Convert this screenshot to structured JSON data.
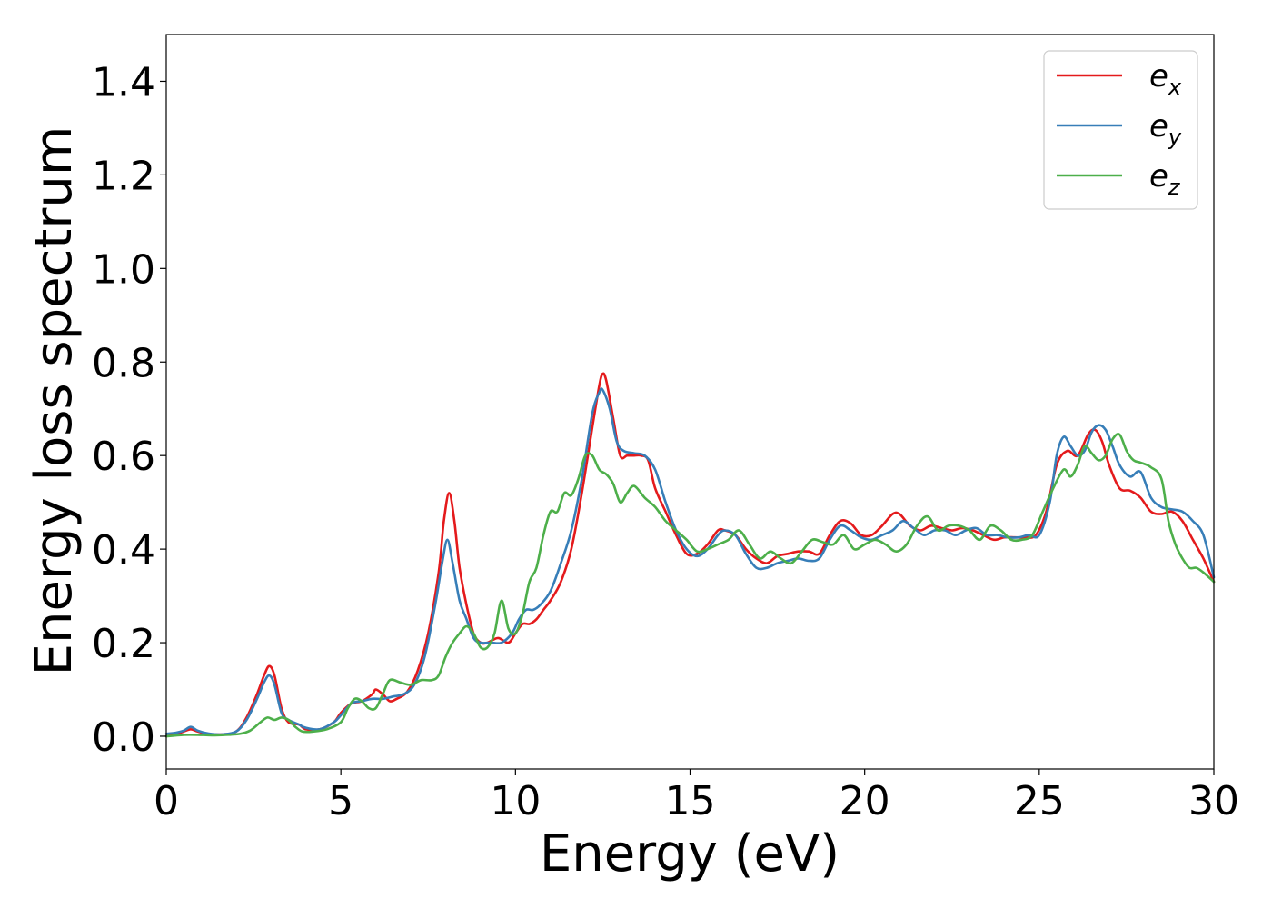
{
  "chart_data": {
    "type": "line",
    "xlabel": "Energy (eV)",
    "ylabel": "Energy loss spectrum",
    "xlim": [
      0,
      30
    ],
    "ylim": [
      -0.07,
      1.5
    ],
    "xticks": [
      0,
      5,
      10,
      15,
      20,
      25,
      30
    ],
    "yticks": [
      0.0,
      0.2,
      0.4,
      0.6,
      0.8,
      1.0,
      1.2,
      1.4
    ],
    "grid": false,
    "legend_position": "top-right",
    "series": [
      {
        "name": "e_x",
        "label_base": "e",
        "label_sub": "x",
        "color": "#e41a1c",
        "x": [
          0,
          0.3,
          0.5,
          0.7,
          0.9,
          1.2,
          1.6,
          2.0,
          2.3,
          2.6,
          2.8,
          2.95,
          3.1,
          3.3,
          3.5,
          3.8,
          4.0,
          4.4,
          4.8,
          5.0,
          5.3,
          5.6,
          5.9,
          6.0,
          6.2,
          6.4,
          6.6,
          6.9,
          7.2,
          7.5,
          7.8,
          7.95,
          8.1,
          8.25,
          8.4,
          8.6,
          8.8,
          9.0,
          9.2,
          9.5,
          9.8,
          10.0,
          10.2,
          10.4,
          10.6,
          10.8,
          11.0,
          11.3,
          11.6,
          11.9,
          12.2,
          12.4,
          12.5,
          12.6,
          12.8,
          13.0,
          13.2,
          13.4,
          13.6,
          13.8,
          14.0,
          14.3,
          14.6,
          14.9,
          15.2,
          15.5,
          15.8,
          16.0,
          16.3,
          16.6,
          16.9,
          17.2,
          17.5,
          17.8,
          18.1,
          18.4,
          18.7,
          19.0,
          19.3,
          19.6,
          19.9,
          20.2,
          20.5,
          20.8,
          21.0,
          21.3,
          21.6,
          21.9,
          22.2,
          22.5,
          22.8,
          23.1,
          23.4,
          23.7,
          24.0,
          24.3,
          24.6,
          24.9,
          25.2,
          25.5,
          25.8,
          26.1,
          26.4,
          26.6,
          26.8,
          27.0,
          27.3,
          27.6,
          27.9,
          28.2,
          28.5,
          28.8,
          29.1,
          29.4,
          29.7,
          30.0
        ],
        "y": [
          0.0,
          0.005,
          0.01,
          0.015,
          0.01,
          0.005,
          0.004,
          0.01,
          0.04,
          0.09,
          0.13,
          0.15,
          0.13,
          0.06,
          0.03,
          0.025,
          0.015,
          0.015,
          0.03,
          0.05,
          0.07,
          0.075,
          0.09,
          0.1,
          0.09,
          0.075,
          0.08,
          0.095,
          0.14,
          0.22,
          0.35,
          0.46,
          0.52,
          0.46,
          0.36,
          0.28,
          0.22,
          0.2,
          0.2,
          0.21,
          0.2,
          0.22,
          0.24,
          0.24,
          0.25,
          0.27,
          0.29,
          0.33,
          0.4,
          0.52,
          0.66,
          0.75,
          0.775,
          0.76,
          0.68,
          0.6,
          0.6,
          0.6,
          0.6,
          0.59,
          0.53,
          0.48,
          0.43,
          0.39,
          0.39,
          0.41,
          0.44,
          0.44,
          0.43,
          0.4,
          0.38,
          0.37,
          0.385,
          0.39,
          0.395,
          0.395,
          0.39,
          0.43,
          0.46,
          0.455,
          0.43,
          0.43,
          0.45,
          0.475,
          0.475,
          0.45,
          0.44,
          0.45,
          0.445,
          0.44,
          0.445,
          0.44,
          0.43,
          0.42,
          0.425,
          0.425,
          0.425,
          0.43,
          0.48,
          0.58,
          0.61,
          0.6,
          0.645,
          0.655,
          0.63,
          0.58,
          0.53,
          0.525,
          0.51,
          0.48,
          0.475,
          0.48,
          0.46,
          0.42,
          0.38,
          0.33
        ]
      },
      {
        "name": "e_y",
        "label_base": "e",
        "label_sub": "y",
        "color": "#377eb8",
        "x": [
          0,
          0.3,
          0.5,
          0.7,
          0.9,
          1.2,
          1.6,
          2.0,
          2.3,
          2.6,
          2.8,
          2.95,
          3.1,
          3.3,
          3.5,
          3.8,
          4.0,
          4.4,
          4.8,
          5.0,
          5.3,
          5.6,
          5.9,
          6.2,
          6.5,
          6.8,
          7.1,
          7.4,
          7.7,
          7.9,
          8.05,
          8.2,
          8.4,
          8.6,
          8.8,
          9.0,
          9.3,
          9.6,
          9.9,
          10.1,
          10.3,
          10.5,
          10.7,
          11.0,
          11.3,
          11.6,
          11.9,
          12.2,
          12.4,
          12.5,
          12.7,
          12.9,
          13.1,
          13.4,
          13.7,
          14.0,
          14.3,
          14.6,
          14.9,
          15.2,
          15.5,
          15.8,
          16.0,
          16.3,
          16.6,
          16.9,
          17.2,
          17.5,
          17.8,
          18.1,
          18.4,
          18.7,
          19.0,
          19.3,
          19.6,
          19.9,
          20.2,
          20.5,
          20.8,
          21.1,
          21.4,
          21.7,
          22.0,
          22.3,
          22.6,
          22.9,
          23.2,
          23.5,
          23.8,
          24.1,
          24.4,
          24.7,
          25.0,
          25.3,
          25.5,
          25.7,
          25.9,
          26.1,
          26.3,
          26.5,
          26.7,
          26.9,
          27.1,
          27.3,
          27.6,
          27.9,
          28.2,
          28.5,
          28.8,
          29.1,
          29.4,
          29.7,
          30.0
        ],
        "y": [
          0.005,
          0.008,
          0.012,
          0.02,
          0.012,
          0.006,
          0.004,
          0.01,
          0.035,
          0.08,
          0.115,
          0.13,
          0.11,
          0.05,
          0.035,
          0.025,
          0.018,
          0.015,
          0.03,
          0.045,
          0.07,
          0.075,
          0.08,
          0.08,
          0.085,
          0.09,
          0.11,
          0.17,
          0.28,
          0.37,
          0.42,
          0.37,
          0.29,
          0.25,
          0.21,
          0.2,
          0.2,
          0.2,
          0.22,
          0.25,
          0.27,
          0.27,
          0.28,
          0.31,
          0.37,
          0.44,
          0.55,
          0.69,
          0.735,
          0.74,
          0.7,
          0.63,
          0.61,
          0.605,
          0.6,
          0.57,
          0.5,
          0.44,
          0.4,
          0.385,
          0.4,
          0.43,
          0.44,
          0.43,
          0.39,
          0.36,
          0.36,
          0.37,
          0.375,
          0.38,
          0.375,
          0.38,
          0.42,
          0.45,
          0.44,
          0.425,
          0.42,
          0.43,
          0.44,
          0.46,
          0.445,
          0.43,
          0.44,
          0.44,
          0.43,
          0.44,
          0.445,
          0.43,
          0.43,
          0.425,
          0.425,
          0.43,
          0.43,
          0.5,
          0.6,
          0.64,
          0.62,
          0.6,
          0.61,
          0.65,
          0.665,
          0.655,
          0.62,
          0.58,
          0.555,
          0.565,
          0.51,
          0.49,
          0.485,
          0.48,
          0.46,
          0.43,
          0.34
        ]
      },
      {
        "name": "e_z",
        "label_base": "e",
        "label_sub": "z",
        "color": "#4daf4a",
        "x": [
          0,
          0.5,
          0.9,
          1.3,
          1.7,
          2.1,
          2.4,
          2.7,
          2.9,
          3.1,
          3.3,
          3.5,
          3.7,
          3.9,
          4.2,
          4.6,
          5.0,
          5.2,
          5.4,
          5.6,
          5.8,
          6.0,
          6.2,
          6.4,
          6.7,
          7.0,
          7.3,
          7.6,
          7.8,
          8.0,
          8.2,
          8.4,
          8.6,
          8.8,
          9.0,
          9.2,
          9.4,
          9.6,
          9.8,
          10.0,
          10.2,
          10.4,
          10.6,
          10.8,
          11.0,
          11.2,
          11.4,
          11.6,
          11.8,
          12.0,
          12.2,
          12.4,
          12.6,
          12.8,
          13.0,
          13.2,
          13.4,
          13.7,
          14.0,
          14.3,
          14.6,
          14.9,
          15.2,
          15.5,
          15.8,
          16.1,
          16.4,
          16.7,
          17.0,
          17.3,
          17.6,
          17.9,
          18.2,
          18.5,
          18.8,
          19.1,
          19.4,
          19.7,
          20.0,
          20.3,
          20.6,
          20.9,
          21.2,
          21.5,
          21.8,
          22.1,
          22.4,
          22.7,
          23.0,
          23.3,
          23.6,
          23.9,
          24.2,
          24.5,
          24.8,
          25.1,
          25.4,
          25.7,
          25.9,
          26.1,
          26.3,
          26.5,
          26.7,
          26.9,
          27.1,
          27.3,
          27.5,
          27.7,
          27.9,
          28.2,
          28.5,
          28.7,
          28.9,
          29.1,
          29.3,
          29.5,
          29.7,
          30.0
        ],
        "y": [
          0.0,
          0.003,
          0.003,
          0.002,
          0.003,
          0.005,
          0.012,
          0.03,
          0.04,
          0.035,
          0.04,
          0.035,
          0.02,
          0.01,
          0.01,
          0.015,
          0.03,
          0.06,
          0.08,
          0.075,
          0.06,
          0.06,
          0.09,
          0.12,
          0.115,
          0.11,
          0.12,
          0.12,
          0.13,
          0.17,
          0.2,
          0.22,
          0.235,
          0.22,
          0.19,
          0.19,
          0.22,
          0.29,
          0.23,
          0.22,
          0.26,
          0.33,
          0.36,
          0.43,
          0.48,
          0.48,
          0.52,
          0.515,
          0.55,
          0.6,
          0.6,
          0.57,
          0.56,
          0.54,
          0.5,
          0.52,
          0.535,
          0.51,
          0.49,
          0.46,
          0.44,
          0.42,
          0.395,
          0.4,
          0.41,
          0.42,
          0.44,
          0.41,
          0.38,
          0.395,
          0.38,
          0.37,
          0.395,
          0.42,
          0.415,
          0.41,
          0.43,
          0.4,
          0.41,
          0.42,
          0.41,
          0.395,
          0.41,
          0.45,
          0.47,
          0.44,
          0.45,
          0.45,
          0.44,
          0.42,
          0.45,
          0.44,
          0.42,
          0.42,
          0.43,
          0.48,
          0.53,
          0.57,
          0.555,
          0.58,
          0.62,
          0.605,
          0.59,
          0.6,
          0.635,
          0.645,
          0.61,
          0.59,
          0.585,
          0.575,
          0.55,
          0.46,
          0.41,
          0.38,
          0.36,
          0.36,
          0.35,
          0.33
        ]
      }
    ]
  }
}
